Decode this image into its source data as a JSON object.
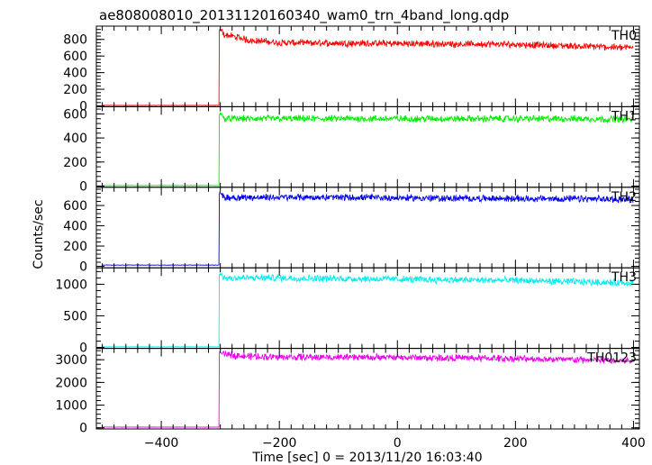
{
  "chart_data": {
    "type": "line",
    "title": "ae808008010_20131120160340_wam0_trn_4band_long.qdp",
    "xlabel": "Time [sec] 0 = 2013/11/20 16:03:40",
    "ylabel": "Counts/sec",
    "xlim": [
      -510,
      410
    ],
    "xticks": [
      -400,
      -200,
      0,
      200,
      400
    ],
    "grid": false,
    "onset_time": -302,
    "panels": [
      {
        "name": "TH0",
        "color": "#ff0000",
        "ylim": [
          -10,
          960
        ],
        "yticks": [
          0,
          200,
          400,
          600,
          800
        ],
        "ytick_labels": [
          "0",
          "200",
          "400",
          "600",
          "800"
        ],
        "baseline": 6,
        "peak": 910,
        "x": [
          -300,
          -250,
          -200,
          -100,
          0,
          100,
          200,
          300,
          400
        ],
        "y": [
          870,
          790,
          760,
          755,
          750,
          745,
          740,
          720,
          700
        ]
      },
      {
        "name": "TH1",
        "color": "#00ee00",
        "ylim": [
          -10,
          660
        ],
        "yticks": [
          0,
          200,
          400,
          600
        ],
        "ytick_labels": [
          "0",
          "200",
          "400",
          "600"
        ],
        "baseline": 5,
        "peak": 600,
        "x": [
          -300,
          -200,
          -100,
          0,
          100,
          200,
          300,
          400
        ],
        "y": [
          560,
          560,
          560,
          560,
          560,
          560,
          560,
          555
        ]
      },
      {
        "name": "TH2",
        "color": "#0000ee",
        "ylim": [
          -15,
          780
        ],
        "yticks": [
          0,
          200,
          400,
          600
        ],
        "ytick_labels": [
          "0",
          "200",
          "400",
          "600"
        ],
        "baseline": 12,
        "peak": 720,
        "x": [
          -300,
          -200,
          -100,
          0,
          100,
          200,
          300,
          400
        ],
        "y": [
          680,
          680,
          680,
          675,
          670,
          668,
          665,
          660
        ]
      },
      {
        "name": "TH3",
        "color": "#00eeee",
        "ylim": [
          -15,
          1260
        ],
        "yticks": [
          0,
          500,
          1000
        ],
        "ytick_labels": [
          "0",
          "500",
          "1000"
        ],
        "baseline": 10,
        "peak": 1160,
        "x": [
          -300,
          -200,
          -100,
          0,
          100,
          200,
          300,
          400
        ],
        "y": [
          1100,
          1100,
          1090,
          1080,
          1070,
          1060,
          1040,
          1020
        ]
      },
      {
        "name": "TH0123",
        "color": "#ee00ee",
        "ylim": [
          -50,
          3500
        ],
        "yticks": [
          0,
          1000,
          2000,
          3000
        ],
        "ytick_labels": [
          "0",
          "1000",
          "2000",
          "3000"
        ],
        "baseline": 30,
        "peak": 3300,
        "x": [
          -300,
          -250,
          -200,
          -100,
          0,
          100,
          200,
          300,
          400
        ],
        "y": [
          3250,
          3150,
          3120,
          3110,
          3100,
          3080,
          3050,
          3000,
          2950
        ]
      }
    ]
  }
}
